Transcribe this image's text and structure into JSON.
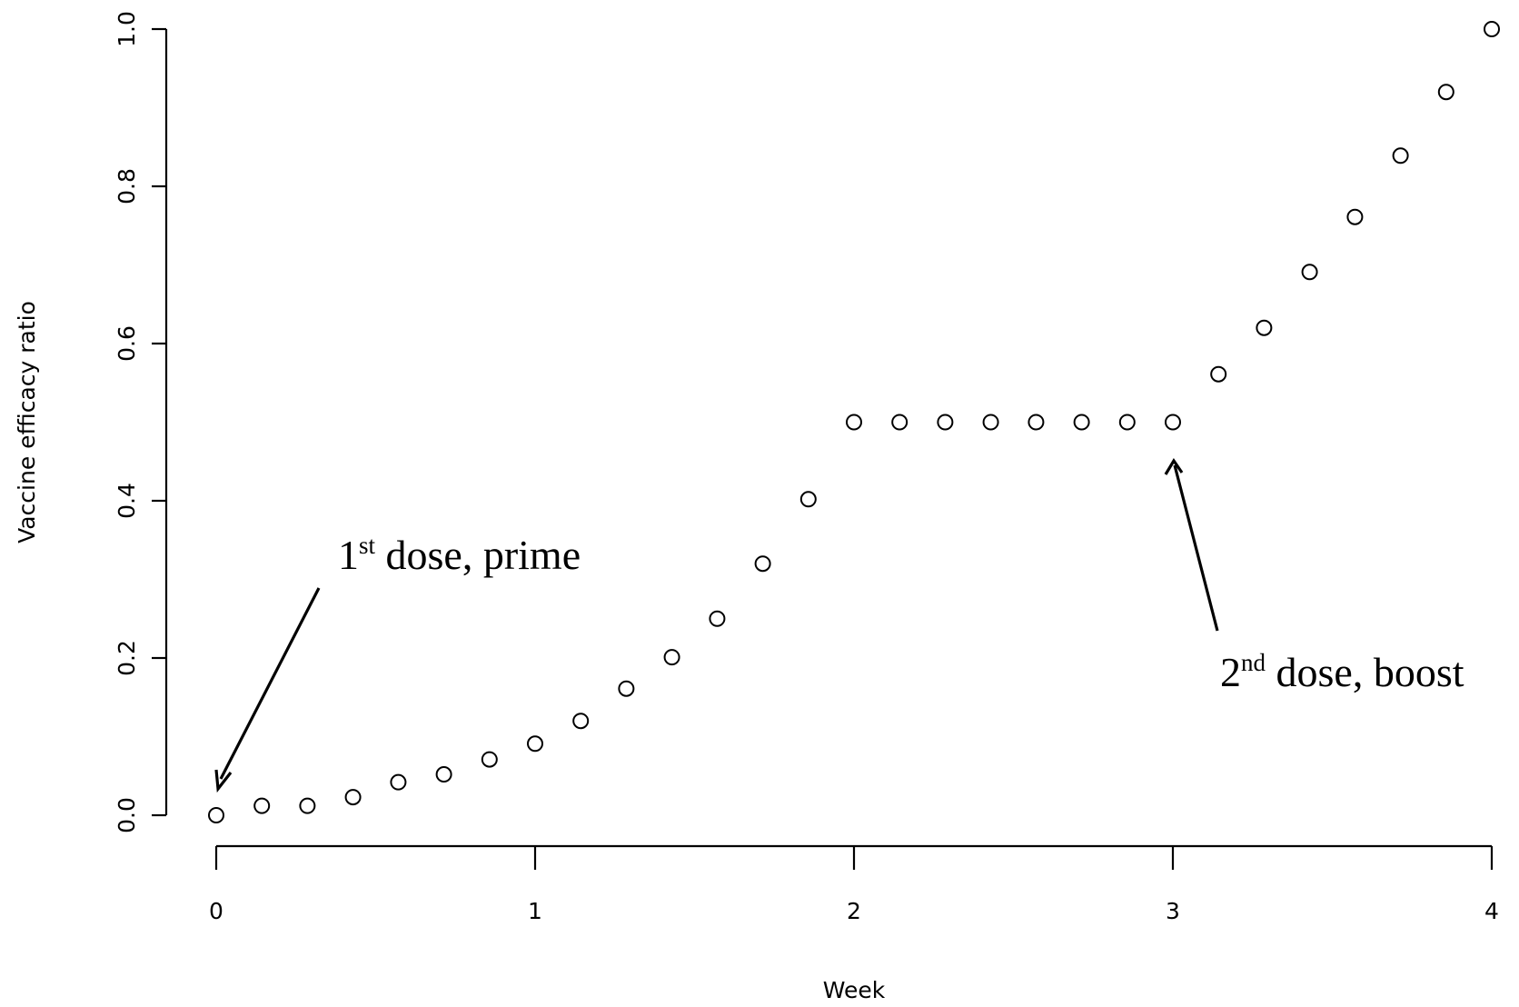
{
  "chart_data": {
    "type": "scatter",
    "title": "",
    "xlabel": "Week",
    "ylabel": "Vaccine efficacy ratio",
    "xlim": [
      0,
      4
    ],
    "ylim": [
      0,
      1
    ],
    "x_ticks": [
      "0",
      "1",
      "2",
      "3",
      "4"
    ],
    "y_ticks": [
      "0.0",
      "0.2",
      "0.4",
      "0.6",
      "0.8",
      "1.0"
    ],
    "grid": false,
    "legend": "none",
    "marker": "open-circle",
    "series": [
      {
        "x": [
          0,
          0.143,
          0.286,
          0.429,
          0.571,
          0.714,
          0.857,
          1.0,
          1.143,
          1.286,
          1.429,
          1.571,
          1.714,
          1.857,
          2.0,
          2.143,
          2.286,
          2.429,
          2.571,
          2.714,
          2.857,
          3.0,
          3.143,
          3.286,
          3.429,
          3.571,
          3.714,
          3.857,
          4.0
        ],
        "y": [
          0.0,
          0.012,
          0.012,
          0.023,
          0.042,
          0.052,
          0.071,
          0.091,
          0.12,
          0.161,
          0.201,
          0.25,
          0.32,
          0.402,
          0.5,
          0.5,
          0.5,
          0.5,
          0.5,
          0.5,
          0.5,
          0.5,
          0.561,
          0.62,
          0.691,
          0.761,
          0.839,
          0.92,
          1.0
        ]
      }
    ],
    "annotations": [
      {
        "num": "1",
        "sup": "st",
        "text": " dose, prime",
        "points_to": [
          0,
          0
        ]
      },
      {
        "num": "2",
        "sup": "nd",
        "text": " dose, boost",
        "points_to": [
          3.0,
          0.5
        ]
      }
    ]
  }
}
